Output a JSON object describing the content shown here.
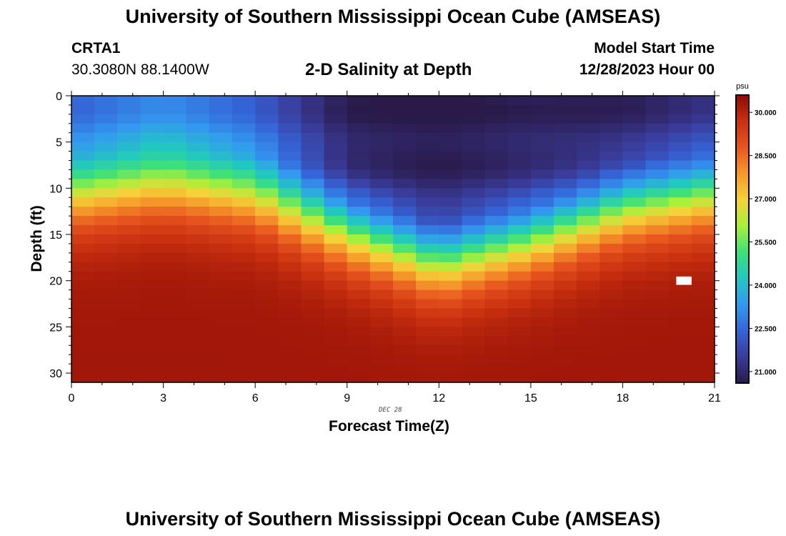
{
  "header": {
    "title": "University of Southern Mississippi Ocean Cube (AMSEAS)",
    "station_id": "CRTA1",
    "station_coords": "30.3080N  88.1400W",
    "subtitle": "2-D Salinity at Depth",
    "model_start_label": "Model Start Time",
    "model_start_value": "12/28/2023 Hour 00"
  },
  "footer": {
    "date_note": "DEC 28",
    "repeat_title": "University of Southern Mississippi Ocean Cube (AMSEAS)"
  },
  "colors": {
    "colormap": [
      "#2a1a4a",
      "#3a3c9a",
      "#3565d8",
      "#3399f0",
      "#22c8c0",
      "#3ee07a",
      "#a8f03a",
      "#f5d23a",
      "#f59a2a",
      "#e8561f",
      "#c8300f",
      "#8e0a06"
    ]
  },
  "chart_data": {
    "type": "heatmap",
    "title": "2-D Salinity at Depth",
    "xlabel": "Forecast Time(Z)",
    "ylabel": "Depth (ft)",
    "x_ticks": [
      0,
      3,
      6,
      9,
      12,
      15,
      18,
      21
    ],
    "y_ticks": [
      0,
      5,
      10,
      15,
      20,
      25,
      30
    ],
    "xlim": [
      0,
      21
    ],
    "ylim": [
      0,
      31
    ],
    "colorbar": {
      "unit": "psu",
      "ticks": [
        "30.000",
        "28.500",
        "27.000",
        "25.500",
        "24.000",
        "22.500",
        "21.000"
      ],
      "range": [
        20.6,
        30.6
      ]
    },
    "cell_hours": 0.75,
    "cell_depth_ft": 1,
    "model": {
      "surface_salinity_profile": [
        {
          "hour": 0,
          "psu": 22.3
        },
        {
          "hour": 3,
          "psu": 23.0
        },
        {
          "hour": 6,
          "psu": 22.2
        },
        {
          "hour": 9,
          "psu": 20.7
        },
        {
          "hour": 12,
          "psu": 20.6
        },
        {
          "hour": 15,
          "psu": 20.8
        },
        {
          "hour": 18,
          "psu": 20.7
        },
        {
          "hour": 21,
          "psu": 21.2
        }
      ],
      "halocline_depth_ft": [
        {
          "hour": 0,
          "depth": 10.5
        },
        {
          "hour": 3,
          "depth": 9.5
        },
        {
          "hour": 6,
          "depth": 10.5
        },
        {
          "hour": 9,
          "depth": 14.5
        },
        {
          "hour": 12,
          "depth": 18.0
        },
        {
          "hour": 15,
          "depth": 15.5
        },
        {
          "hour": 18,
          "depth": 12.0
        },
        {
          "hour": 21,
          "depth": 10.5
        }
      ],
      "bottom_salinity_psu": 30.3,
      "halocline_thickness_ft": 2.5,
      "missing_cell": {
        "hour": 20,
        "depth": 20
      }
    }
  }
}
